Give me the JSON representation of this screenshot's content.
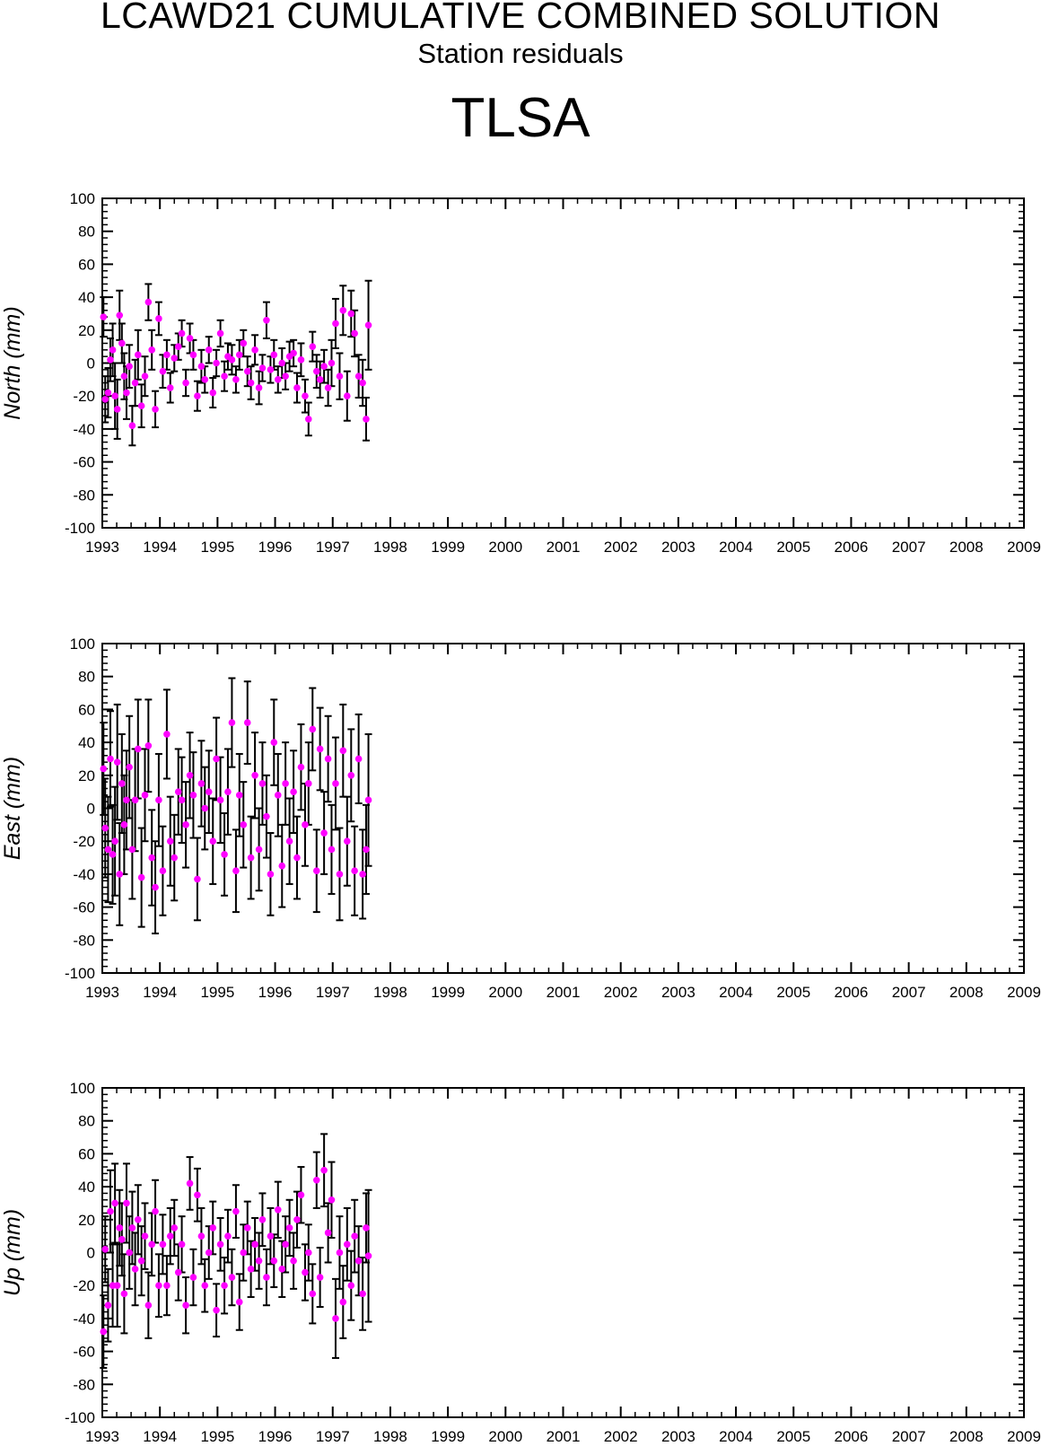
{
  "title": "LCAWD21 CUMULATIVE COMBINED SOLUTION",
  "subtitle": "Station residuals",
  "station": "TLSA",
  "marker_color": "#ff00ff",
  "errorbar_color": "#000000",
  "chart_data": [
    {
      "type": "scatter",
      "ylabel": "North (mm)",
      "xlim": [
        1993,
        2009
      ],
      "ylim": [
        -100,
        100
      ],
      "xticks": [
        1993,
        1994,
        1995,
        1996,
        1997,
        1998,
        1999,
        2000,
        2001,
        2002,
        2003,
        2004,
        2005,
        2006,
        2007,
        2008,
        2009
      ],
      "yticks": [
        -100,
        -80,
        -60,
        -40,
        -20,
        0,
        20,
        40,
        60,
        80,
        100
      ],
      "grid": false,
      "series": [
        {
          "x": [
            1993.02,
            1993.05,
            1993.1,
            1993.14,
            1993.18,
            1993.22,
            1993.26,
            1993.3,
            1993.34,
            1993.38,
            1993.42,
            1993.47,
            1993.52,
            1993.57,
            1993.62,
            1993.68,
            1993.74,
            1993.8,
            1993.86,
            1993.92,
            1993.98,
            1994.05,
            1994.12,
            1994.18,
            1994.25,
            1994.32,
            1994.38,
            1994.45,
            1994.52,
            1994.58,
            1994.65,
            1994.72,
            1994.78,
            1994.85,
            1994.92,
            1994.98,
            1995.05,
            1995.12,
            1995.18,
            1995.25,
            1995.32,
            1995.38,
            1995.45,
            1995.52,
            1995.58,
            1995.65,
            1995.72,
            1995.78,
            1995.85,
            1995.92,
            1995.98,
            1996.05,
            1996.12,
            1996.18,
            1996.25,
            1996.32,
            1996.38,
            1996.45,
            1996.52,
            1996.58,
            1996.65,
            1996.72,
            1996.78,
            1996.85,
            1996.92,
            1996.98,
            1997.05,
            1997.12,
            1997.18,
            1997.25,
            1997.32,
            1997.38,
            1997.45,
            1997.52,
            1997.58,
            1997.62
          ],
          "y": [
            28,
            -22,
            -18,
            2,
            8,
            -20,
            -28,
            29,
            12,
            -8,
            -18,
            -2,
            -38,
            -12,
            5,
            -26,
            -8,
            37,
            8,
            -28,
            27,
            -5,
            5,
            -15,
            3,
            10,
            18,
            -12,
            15,
            5,
            -20,
            -2,
            -10,
            8,
            -18,
            0,
            18,
            -8,
            4,
            2,
            -10,
            5,
            12,
            -5,
            -12,
            8,
            -15,
            -3,
            26,
            -4,
            5,
            -10,
            0,
            -8,
            4,
            6,
            -15,
            2,
            -20,
            -34,
            10,
            -5,
            -10,
            -2,
            -15,
            0,
            24,
            -8,
            32,
            -20,
            30,
            18,
            -8,
            -12,
            -34,
            23
          ],
          "err": [
            12,
            14,
            15,
            13,
            16,
            20,
            18,
            15,
            12,
            14,
            16,
            13,
            12,
            14,
            15,
            13,
            12,
            11,
            12,
            11,
            10,
            10,
            9,
            9,
            8,
            8,
            8,
            8,
            9,
            9,
            9,
            10,
            8,
            8,
            9,
            8,
            8,
            9,
            8,
            9,
            8,
            9,
            8,
            9,
            10,
            9,
            10,
            8,
            11,
            8,
            9,
            8,
            9,
            8,
            9,
            8,
            9,
            10,
            10,
            10,
            9,
            10,
            11,
            10,
            11,
            14,
            15,
            14,
            15,
            15,
            14,
            14,
            13,
            14,
            13,
            27
          ]
        }
      ]
    },
    {
      "type": "scatter",
      "ylabel": "East (mm)",
      "xlim": [
        1993,
        2009
      ],
      "ylim": [
        -100,
        100
      ],
      "xticks": [
        1993,
        1994,
        1995,
        1996,
        1997,
        1998,
        1999,
        2000,
        2001,
        2002,
        2003,
        2004,
        2005,
        2006,
        2007,
        2008,
        2009
      ],
      "yticks": [
        -100,
        -80,
        -60,
        -40,
        -20,
        0,
        20,
        40,
        60,
        80,
        100
      ],
      "grid": false,
      "series": [
        {
          "x": [
            1993.02,
            1993.05,
            1993.1,
            1993.14,
            1993.18,
            1993.22,
            1993.26,
            1993.3,
            1993.34,
            1993.38,
            1993.42,
            1993.47,
            1993.52,
            1993.57,
            1993.62,
            1993.68,
            1993.74,
            1993.8,
            1993.86,
            1993.92,
            1993.98,
            1994.05,
            1994.12,
            1994.18,
            1994.25,
            1994.32,
            1994.38,
            1994.45,
            1994.52,
            1994.58,
            1994.65,
            1994.72,
            1994.78,
            1994.85,
            1994.92,
            1994.98,
            1995.05,
            1995.12,
            1995.18,
            1995.25,
            1995.32,
            1995.38,
            1995.45,
            1995.52,
            1995.58,
            1995.65,
            1995.72,
            1995.78,
            1995.85,
            1995.92,
            1995.98,
            1996.05,
            1996.12,
            1996.18,
            1996.25,
            1996.32,
            1996.38,
            1996.45,
            1996.52,
            1996.58,
            1996.65,
            1996.72,
            1996.78,
            1996.85,
            1996.92,
            1996.98,
            1997.05,
            1997.12,
            1997.18,
            1997.25,
            1997.32,
            1997.38,
            1997.45,
            1997.52,
            1997.58,
            1997.62
          ],
          "y": [
            24,
            -12,
            -25,
            30,
            -28,
            -20,
            28,
            -40,
            15,
            -10,
            5,
            25,
            -25,
            5,
            36,
            -42,
            8,
            38,
            -30,
            -48,
            5,
            -38,
            45,
            -20,
            -30,
            10,
            5,
            -10,
            20,
            8,
            -43,
            15,
            0,
            10,
            -20,
            30,
            5,
            -28,
            10,
            52,
            -38,
            8,
            -10,
            52,
            -30,
            20,
            -25,
            15,
            -5,
            -40,
            40,
            8,
            -35,
            15,
            -20,
            10,
            -30,
            25,
            -10,
            15,
            48,
            -38,
            36,
            -15,
            30,
            -25,
            15,
            -40,
            35,
            -20,
            20,
            -38,
            30,
            -40,
            -25,
            5
          ],
          "err": [
            28,
            30,
            32,
            29,
            30,
            33,
            35,
            31,
            30,
            30,
            30,
            31,
            30,
            31,
            30,
            30,
            28,
            28,
            29,
            28,
            28,
            27,
            27,
            27,
            26,
            26,
            26,
            26,
            26,
            26,
            25,
            26,
            25,
            25,
            26,
            25,
            26,
            25,
            26,
            27,
            25,
            25,
            26,
            25,
            25,
            26,
            25,
            25,
            25,
            25,
            26,
            25,
            25,
            25,
            26,
            25,
            25,
            26,
            25,
            25,
            25,
            25,
            25,
            25,
            26,
            27,
            28,
            28,
            28,
            27,
            28,
            27,
            27,
            27,
            27,
            40
          ]
        }
      ]
    },
    {
      "type": "scatter",
      "ylabel": "Up (mm)",
      "xlim": [
        1993,
        2009
      ],
      "ylim": [
        -100,
        100
      ],
      "xticks": [
        1993,
        1994,
        1995,
        1996,
        1997,
        1998,
        1999,
        2000,
        2001,
        2002,
        2003,
        2004,
        2005,
        2006,
        2007,
        2008,
        2009
      ],
      "yticks": [
        -100,
        -80,
        -60,
        -40,
        -20,
        0,
        20,
        40,
        60,
        80,
        100
      ],
      "grid": false,
      "series": [
        {
          "x": [
            1993.02,
            1993.05,
            1993.1,
            1993.14,
            1993.18,
            1993.22,
            1993.26,
            1993.3,
            1993.34,
            1993.38,
            1993.42,
            1993.47,
            1993.52,
            1993.57,
            1993.62,
            1993.68,
            1993.74,
            1993.8,
            1993.86,
            1993.92,
            1993.98,
            1994.05,
            1994.12,
            1994.18,
            1994.25,
            1994.32,
            1994.38,
            1994.45,
            1994.52,
            1994.58,
            1994.65,
            1994.72,
            1994.78,
            1994.85,
            1994.92,
            1994.98,
            1995.05,
            1995.12,
            1995.18,
            1995.25,
            1995.32,
            1995.38,
            1995.45,
            1995.52,
            1995.58,
            1995.65,
            1995.72,
            1995.78,
            1995.85,
            1995.92,
            1995.98,
            1996.05,
            1996.12,
            1996.18,
            1996.25,
            1996.32,
            1996.38,
            1996.45,
            1996.52,
            1996.58,
            1996.65,
            1996.72,
            1996.78,
            1996.85,
            1996.92,
            1996.98,
            1997.05,
            1997.12,
            1997.18,
            1997.25,
            1997.32,
            1997.38,
            1997.45,
            1997.52,
            1997.58,
            1997.62
          ],
          "y": [
            -48,
            2,
            -32,
            25,
            -20,
            30,
            -20,
            15,
            8,
            -25,
            30,
            0,
            15,
            -10,
            20,
            -5,
            10,
            -32,
            5,
            25,
            -20,
            5,
            -20,
            10,
            15,
            -12,
            5,
            -32,
            42,
            -15,
            35,
            10,
            -20,
            0,
            15,
            -35,
            5,
            -20,
            10,
            -15,
            25,
            -30,
            0,
            15,
            -10,
            5,
            -5,
            20,
            -15,
            10,
            -5,
            26,
            -10,
            5,
            15,
            -5,
            20,
            35,
            -12,
            0,
            -25,
            44,
            -15,
            50,
            12,
            32,
            -40,
            0,
            -30,
            5,
            -20,
            10,
            -5,
            -25,
            15,
            -2
          ],
          "err": [
            22,
            20,
            22,
            25,
            25,
            24,
            25,
            23,
            22,
            24,
            24,
            22,
            22,
            22,
            21,
            21,
            20,
            20,
            19,
            19,
            19,
            18,
            18,
            17,
            17,
            17,
            17,
            17,
            16,
            17,
            16,
            17,
            16,
            16,
            16,
            16,
            16,
            17,
            16,
            17,
            16,
            17,
            17,
            16,
            17,
            16,
            17,
            16,
            17,
            17,
            16,
            17,
            17,
            17,
            17,
            17,
            17,
            17,
            17,
            17,
            18,
            17,
            18,
            22,
            18,
            23,
            24,
            22,
            22,
            22,
            21,
            22,
            21,
            22,
            21,
            40
          ]
        }
      ]
    }
  ]
}
